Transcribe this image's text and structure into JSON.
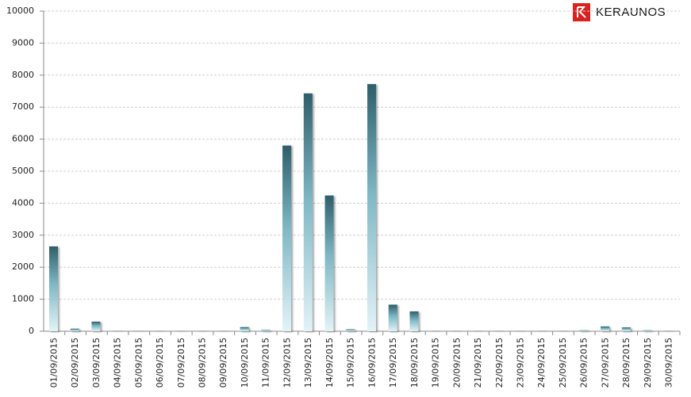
{
  "brand": "KERAUNOS",
  "chart_data": {
    "type": "bar",
    "categories": [
      "01/09/2015",
      "02/09/2015",
      "03/09/2015",
      "04/09/2015",
      "05/09/2015",
      "06/09/2015",
      "07/09/2015",
      "08/09/2015",
      "09/09/2015",
      "10/09/2015",
      "11/09/2015",
      "12/09/2015",
      "13/09/2015",
      "14/09/2015",
      "15/09/2015",
      "16/09/2015",
      "17/09/2015",
      "18/09/2015",
      "19/09/2015",
      "20/09/2015",
      "21/09/2015",
      "22/09/2015",
      "23/09/2015",
      "24/09/2015",
      "25/09/2015",
      "26/09/2015",
      "27/09/2015",
      "28/09/2015",
      "29/09/2015",
      "30/09/2015"
    ],
    "values": [
      2650,
      80,
      300,
      5,
      5,
      5,
      5,
      5,
      5,
      130,
      40,
      5800,
      7430,
      4240,
      60,
      7720,
      830,
      620,
      5,
      5,
      5,
      5,
      5,
      5,
      5,
      30,
      150,
      120,
      30,
      5
    ],
    "color": "#2e5f6b",
    "ylim": [
      0,
      10000
    ],
    "yticks": [
      0,
      1000,
      2000,
      3000,
      4000,
      5000,
      6000,
      7000,
      8000,
      9000,
      10000
    ],
    "grid": true
  }
}
